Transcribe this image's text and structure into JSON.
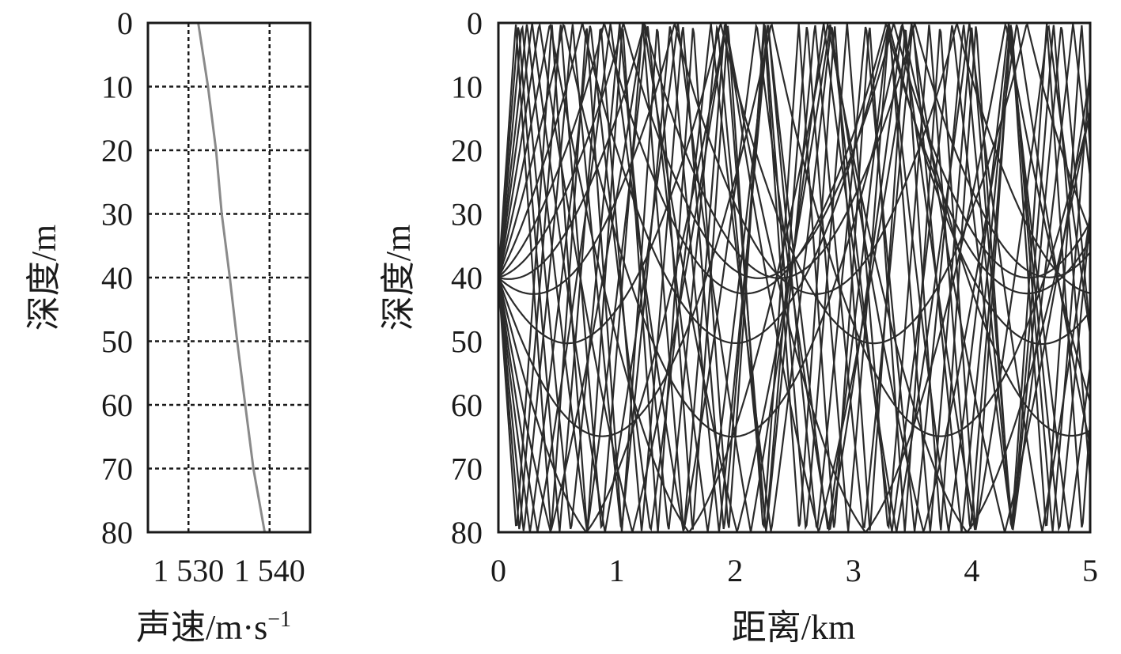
{
  "chart_data": [
    {
      "type": "line",
      "title": "",
      "xlabel": "声速/m·s",
      "xlabel_sup": "−1",
      "ylabel": "深度/m",
      "xlim": [
        1525,
        1545
      ],
      "ylim": [
        80,
        0
      ],
      "xticks": [
        1530,
        1540
      ],
      "xtick_labels": [
        "1 530",
        "1 540"
      ],
      "yticks": [
        0,
        10,
        20,
        30,
        40,
        50,
        60,
        70,
        80
      ],
      "ytick_labels": [
        "0",
        "10",
        "20",
        "30",
        "40",
        "50",
        "60",
        "70",
        "80"
      ],
      "grid": true,
      "grid_style": "dotted",
      "line_color": "#8a8a8a",
      "series": [
        {
          "x": [
            1531.2,
            1532.4,
            1533.4,
            1534.1,
            1535.1,
            1536.0,
            1537.0,
            1538.0,
            1539.4
          ],
          "y": [
            0,
            10,
            20,
            30,
            40,
            50,
            60,
            70,
            80
          ]
        }
      ]
    },
    {
      "type": "line",
      "title": "",
      "xlabel": "距离/km",
      "ylabel": "深度/m",
      "xlim": [
        0,
        5
      ],
      "ylim": [
        80,
        0
      ],
      "xticks": [
        0,
        1,
        2,
        3,
        4,
        5
      ],
      "xtick_labels": [
        "0",
        "1",
        "2",
        "3",
        "4",
        "5"
      ],
      "yticks": [
        0,
        10,
        20,
        30,
        40,
        50,
        60,
        70,
        80
      ],
      "ytick_labels": [
        "0",
        "10",
        "20",
        "30",
        "40",
        "50",
        "60",
        "70",
        "80"
      ],
      "grid": false,
      "line_color": "#2b2b2b",
      "source_depth": 40,
      "ray_launch_angles_deg": [
        -15,
        -13,
        -11,
        -9,
        -7.5,
        -6,
        -4.5,
        -3.2,
        -2,
        -1,
        -0.3,
        0.3,
        1,
        2,
        3.2,
        4.5,
        6,
        7.5,
        9,
        11,
        13,
        15
      ]
    }
  ]
}
